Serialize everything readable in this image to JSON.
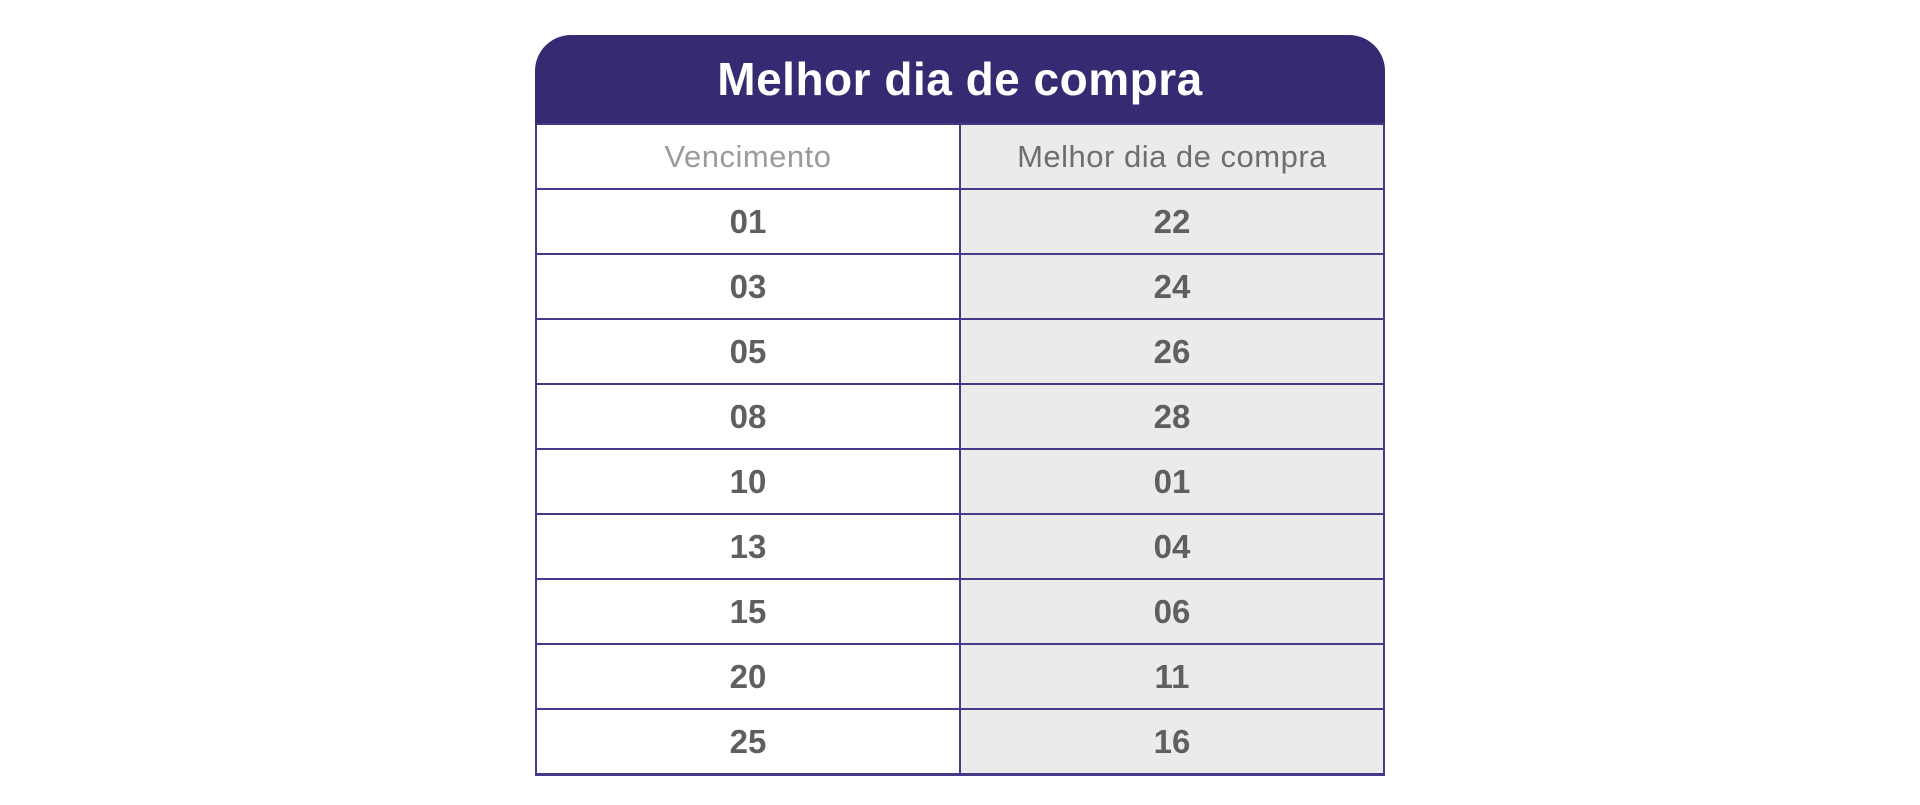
{
  "theme": {
    "canvas_bg": "#ffffff",
    "header_bg": "#372972",
    "header_text": "#ffffff",
    "grid_line": "#443a87",
    "shaded_cell_bg": "#ebebeb",
    "muted_header_text": "#9b9b9b",
    "column_header_text": "#6e6e6e",
    "value_text": "#5f5f5f"
  },
  "card": {
    "title": "Melhor dia de compra"
  },
  "table": {
    "columns": [
      {
        "label": "Vencimento"
      },
      {
        "label": "Melhor dia de compra"
      }
    ],
    "rows": [
      {
        "vencimento": "01",
        "melhor_dia": "22"
      },
      {
        "vencimento": "03",
        "melhor_dia": "24"
      },
      {
        "vencimento": "05",
        "melhor_dia": "26"
      },
      {
        "vencimento": "08",
        "melhor_dia": "28"
      },
      {
        "vencimento": "10",
        "melhor_dia": "01"
      },
      {
        "vencimento": "13",
        "melhor_dia": "04"
      },
      {
        "vencimento": "15",
        "melhor_dia": "06"
      },
      {
        "vencimento": "20",
        "melhor_dia": "11"
      },
      {
        "vencimento": "25",
        "melhor_dia": "16"
      }
    ]
  },
  "chart_data": {
    "type": "table",
    "title": "Melhor dia de compra",
    "columns": [
      "Vencimento",
      "Melhor dia de compra"
    ],
    "rows": [
      [
        "01",
        "22"
      ],
      [
        "03",
        "24"
      ],
      [
        "05",
        "26"
      ],
      [
        "08",
        "28"
      ],
      [
        "10",
        "01"
      ],
      [
        "13",
        "04"
      ],
      [
        "15",
        "06"
      ],
      [
        "20",
        "11"
      ],
      [
        "25",
        "16"
      ]
    ]
  }
}
